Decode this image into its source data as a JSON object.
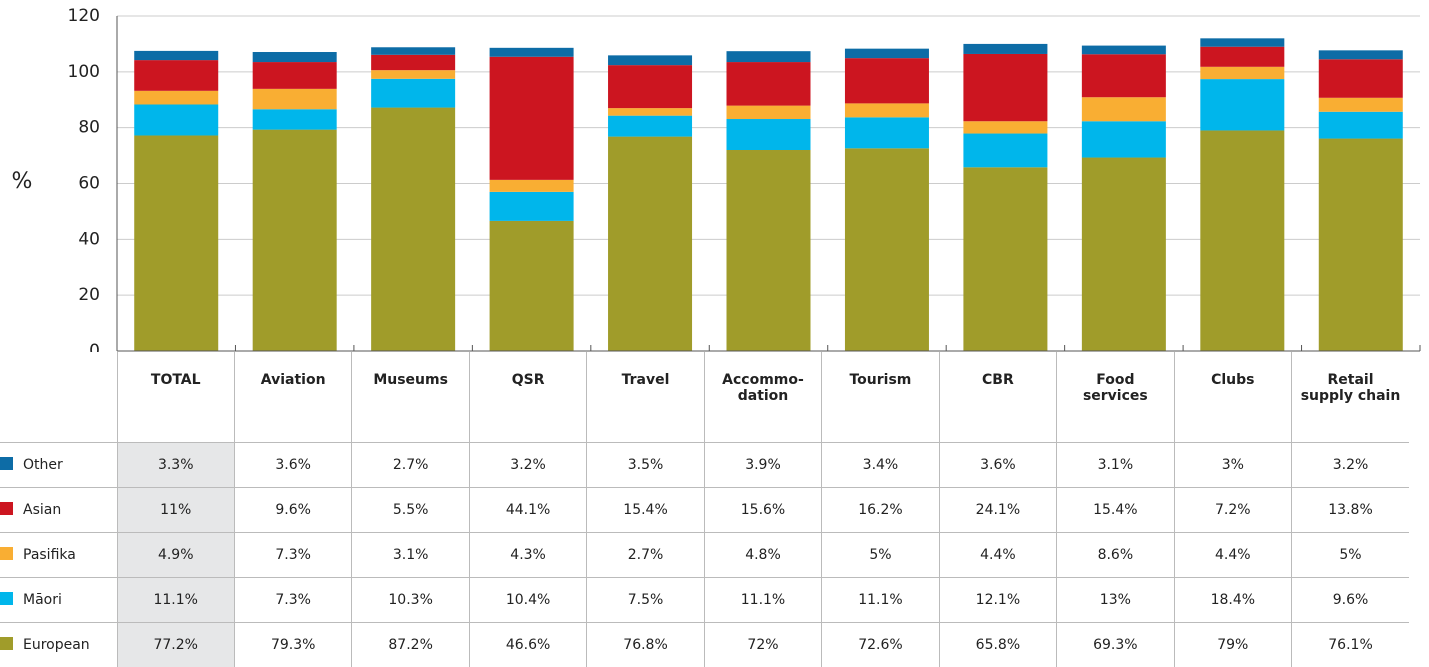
{
  "chart_data": {
    "type": "stacked_bar",
    "y_label": "%",
    "categories": [
      "TOTAL",
      "Aviation",
      "Museums",
      "QSR",
      "Travel",
      "Accommo-\ndation",
      "Tourism",
      "CBR",
      "Food\nservices",
      "Clubs",
      "Retail\nsupply chain"
    ],
    "series": [
      {
        "name": "Other",
        "color": "#0d6ca6",
        "values": [
          3.3,
          3.6,
          2.7,
          3.2,
          3.5,
          3.9,
          3.4,
          3.6,
          3.1,
          3,
          3.2
        ],
        "value_labels": [
          "3.3%",
          "3.6%",
          "2.7%",
          "3.2%",
          "3.5%",
          "3.9%",
          "3.4%",
          "3.6%",
          "3.1%",
          "3%",
          "3.2%"
        ]
      },
      {
        "name": "Asian",
        "color": "#cc1520",
        "values": [
          11,
          9.6,
          5.5,
          44.1,
          15.4,
          15.6,
          16.2,
          24.1,
          15.4,
          7.2,
          13.8
        ],
        "value_labels": [
          "11%",
          "9.6%",
          "5.5%",
          "44.1%",
          "15.4%",
          "15.6%",
          "16.2%",
          "24.1%",
          "15.4%",
          "7.2%",
          "13.8%"
        ]
      },
      {
        "name": "Pasifika",
        "color": "#f9ae33",
        "values": [
          4.9,
          7.3,
          3.1,
          4.3,
          2.7,
          4.8,
          5,
          4.4,
          8.6,
          4.4,
          5
        ],
        "value_labels": [
          "4.9%",
          "7.3%",
          "3.1%",
          "4.3%",
          "2.7%",
          "4.8%",
          "5%",
          "4.4%",
          "8.6%",
          "4.4%",
          "5%"
        ]
      },
      {
        "name": "Māori",
        "color": "#00b6eb",
        "values": [
          11.1,
          7.3,
          10.3,
          10.4,
          7.5,
          11.1,
          11.1,
          12.1,
          13,
          18.4,
          9.6
        ],
        "value_labels": [
          "11.1%",
          "7.3%",
          "10.3%",
          "10.4%",
          "7.5%",
          "11.1%",
          "11.1%",
          "12.1%",
          "13%",
          "18.4%",
          "9.6%"
        ]
      },
      {
        "name": "European",
        "color": "#a09c2a",
        "values": [
          77.2,
          79.3,
          87.2,
          46.6,
          76.8,
          72,
          72.6,
          65.8,
          69.3,
          79,
          76.1
        ],
        "value_labels": [
          "77.2%",
          "79.3%",
          "87.2%",
          "46.6%",
          "76.8%",
          "72%",
          "72.6%",
          "65.8%",
          "69.3%",
          "79%",
          "76.1%"
        ]
      }
    ],
    "ylim": [
      0,
      120
    ],
    "yticks": [
      0,
      20,
      40,
      60,
      80,
      100,
      120
    ],
    "grid": true
  }
}
